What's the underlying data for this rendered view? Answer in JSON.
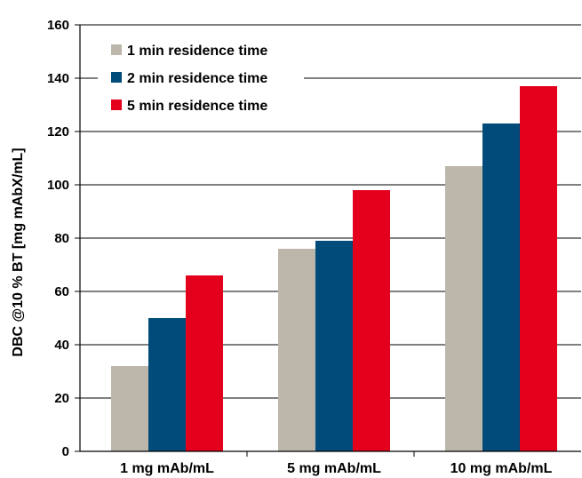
{
  "chart_data": {
    "type": "bar",
    "title": "",
    "xlabel": "",
    "ylabel": "DBC @10 % BT [mg mAbX/mL]",
    "ylim": [
      0,
      160
    ],
    "yticks": [
      0,
      20,
      40,
      60,
      80,
      100,
      120,
      140,
      160
    ],
    "grid": "horizontal",
    "legend_position": "top-left",
    "categories": [
      "1 mg mAb/mL",
      "5 mg mAb/mL",
      "10 mg mAb/mL"
    ],
    "series": [
      {
        "name": "1 min residence time",
        "color": "#BDB6AB",
        "values": [
          32,
          76,
          107
        ]
      },
      {
        "name": "2 min residence time",
        "color": "#004B7A",
        "values": [
          50,
          79,
          123
        ]
      },
      {
        "name": "5 min residence time",
        "color": "#E4001C",
        "values": [
          66,
          98,
          137
        ]
      }
    ]
  }
}
